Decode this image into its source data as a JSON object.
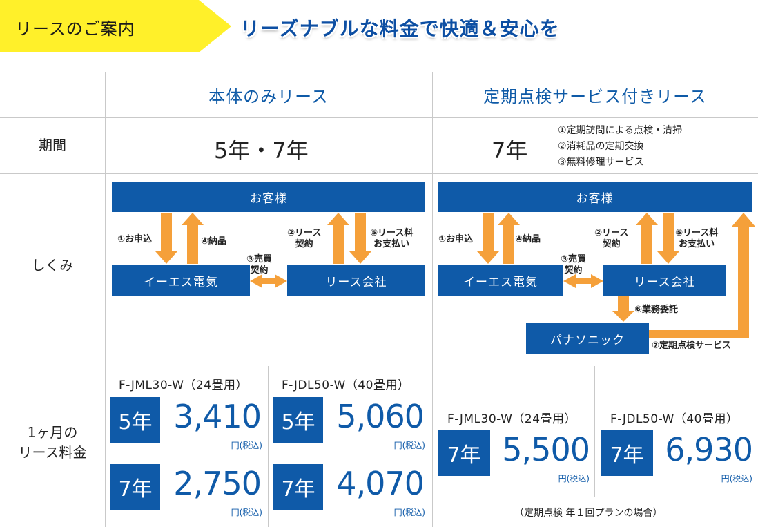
{
  "header": {
    "tag": "リースのご案内",
    "headline": "リーズナブルな料金で快適＆安心を",
    "tag_color": "#fff02a",
    "headline_color": "#0d4fa3"
  },
  "columns": {
    "plan_basic": "本体のみリース",
    "plan_service": "定期点検サービス付きリース"
  },
  "rows": {
    "period_label": "期間",
    "scheme_label": "しくみ",
    "fee_label": "1ヶ月の\nリース料金"
  },
  "period": {
    "basic": "5年・7年",
    "service": "7年",
    "service_notes": [
      "①定期訪問による点検・清掃",
      "②消耗品の定期交換",
      "③無料修理サービス"
    ]
  },
  "diagram": {
    "customer": "お客様",
    "es_denki": "イーエス電気",
    "lease_company": "リース会社",
    "panasonic": "パナソニック",
    "step1": "①お申込",
    "step2": "②リース\n契約",
    "step3": "③売買\n契約",
    "step4": "④納品",
    "step5": "⑤リース料\nお支払い",
    "step6": "⑥業務委託",
    "step7": "⑦定期点検サービス",
    "box_color": "#0f5aa8",
    "arrow_color": "#f5a03a"
  },
  "prices": {
    "basic": [
      {
        "model": "F-JML30-W（24畳用）",
        "plans": [
          {
            "years": "5年",
            "price": "3,410",
            "unit": "円(税込)"
          },
          {
            "years": "7年",
            "price": "2,750",
            "unit": "円(税込)"
          }
        ]
      },
      {
        "model": "F-JDL50-W（40畳用）",
        "plans": [
          {
            "years": "5年",
            "price": "5,060",
            "unit": "円(税込)"
          },
          {
            "years": "7年",
            "price": "4,070",
            "unit": "円(税込)"
          }
        ]
      }
    ],
    "service": [
      {
        "model": "F-JML30-W（24畳用）",
        "plans": [
          {
            "years": "7年",
            "price": "5,500",
            "unit": "円(税込)"
          }
        ]
      },
      {
        "model": "F-JDL50-W（40畳用）",
        "plans": [
          {
            "years": "7年",
            "price": "6,930",
            "unit": "円(税込)"
          }
        ]
      }
    ],
    "footnote": "（定期点検 年１回プランの場合）",
    "accent_color": "#0f5aa8"
  }
}
